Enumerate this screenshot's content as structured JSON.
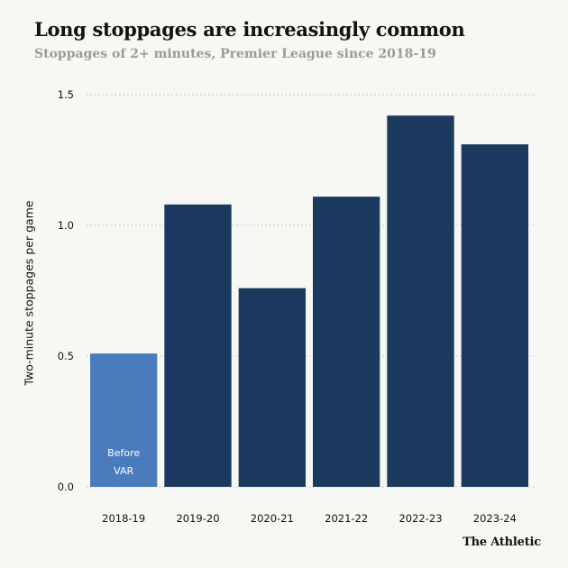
{
  "header": {
    "title": "Long stoppages are increasingly common",
    "subtitle": "Stoppages of 2+ minutes, Premier League since 2018-19"
  },
  "brand": "The Athletic",
  "colors": {
    "background": "#f7f7f4",
    "before_var": "#4a7cbd",
    "after_var": "#1c3a60",
    "grid": "#bdbdbd",
    "text": "#121212"
  },
  "chart_data": {
    "type": "bar",
    "title": "Long stoppages are increasingly common",
    "subtitle": "Stoppages of 2+ minutes, Premier League since 2018-19",
    "xlabel": "",
    "ylabel": "Two-minute stoppages per game",
    "categories": [
      "2018-19",
      "2019-20",
      "2020-21",
      "2021-22",
      "2022-23",
      "2023-24"
    ],
    "values": [
      0.51,
      1.08,
      0.76,
      1.11,
      1.42,
      1.31
    ],
    "ylim": [
      0,
      1.5
    ],
    "yticks": [
      "0.0",
      "0.5",
      "1.0",
      "1.5"
    ],
    "grid": true,
    "grid_style": "dotted",
    "legend": "none",
    "annotations": [
      {
        "category": "2018-19",
        "lines": [
          "Before",
          "VAR"
        ]
      }
    ]
  }
}
